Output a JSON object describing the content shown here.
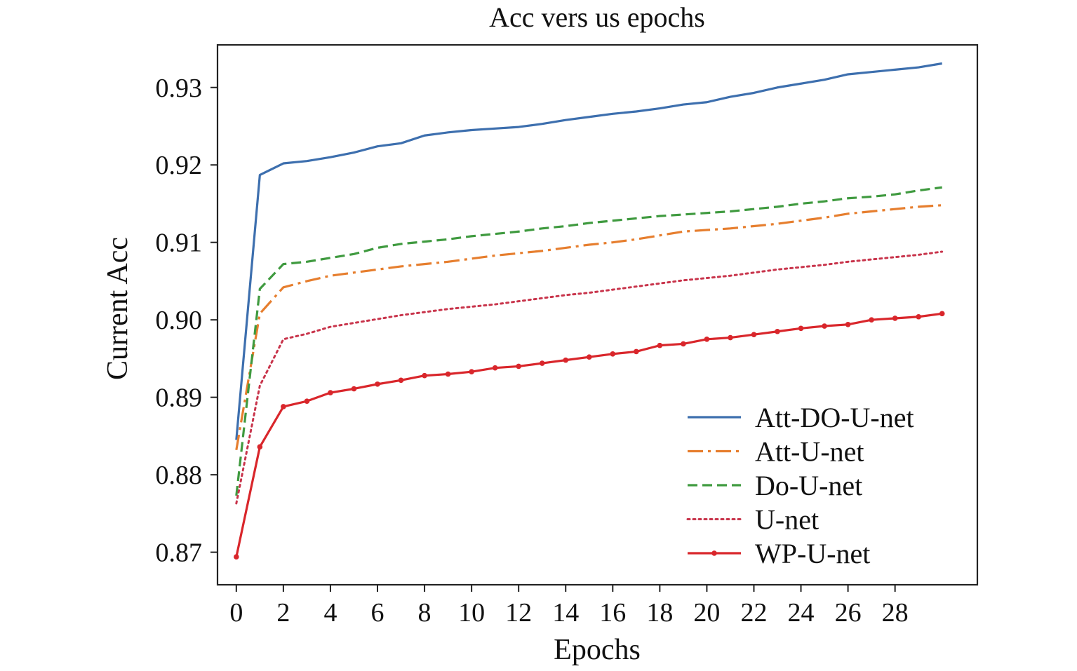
{
  "chart_data": {
    "type": "line",
    "title": "Acc vers us epochs",
    "xlabel": "Epochs",
    "ylabel": "Current Acc",
    "xlim": [
      -0.8,
      31.5
    ],
    "ylim": [
      0.8658,
      0.9355
    ],
    "x_ticks": [
      0,
      2,
      4,
      6,
      8,
      10,
      12,
      14,
      16,
      18,
      20,
      22,
      24,
      26,
      28
    ],
    "x_tick_labels": [
      "0",
      "2",
      "4",
      "6",
      "8",
      "10",
      "12",
      "14",
      "16",
      "18",
      "20",
      "22",
      "24",
      "26",
      "28"
    ],
    "y_ticks": [
      0.87,
      0.88,
      0.89,
      0.9,
      0.91,
      0.92,
      0.93
    ],
    "y_tick_labels": [
      "0.87",
      "0.88",
      "0.89",
      "0.90",
      "0.91",
      "0.92",
      "0.93"
    ],
    "grid": false,
    "legend_position": "bottom-right",
    "x": [
      0,
      1,
      2,
      3,
      4,
      5,
      6,
      7,
      8,
      9,
      10,
      11,
      12,
      13,
      14,
      15,
      16,
      17,
      18,
      19,
      20,
      21,
      22,
      23,
      24,
      25,
      26,
      27,
      28,
      29,
      30
    ],
    "series": [
      {
        "name": "Att-DO-U-net",
        "color": "#3d6fae",
        "style": "solid",
        "values": [
          0.8845,
          0.9187,
          0.9202,
          0.9205,
          0.921,
          0.9216,
          0.9224,
          0.9228,
          0.9238,
          0.9242,
          0.9245,
          0.9247,
          0.9249,
          0.9253,
          0.9258,
          0.9262,
          0.9266,
          0.9269,
          0.9273,
          0.9278,
          0.9281,
          0.9288,
          0.9293,
          0.93,
          0.9305,
          0.931,
          0.9317,
          0.932,
          0.9323,
          0.9326,
          0.9331
        ]
      },
      {
        "name": "Att-U-net",
        "color": "#e67e2e",
        "style": "dashdot",
        "values": [
          0.8832,
          0.9008,
          0.9042,
          0.905,
          0.9057,
          0.9061,
          0.9065,
          0.9069,
          0.9072,
          0.9075,
          0.9079,
          0.9083,
          0.9086,
          0.9089,
          0.9093,
          0.9097,
          0.91,
          0.9104,
          0.9109,
          0.9114,
          0.9116,
          0.9118,
          0.9121,
          0.9124,
          0.9128,
          0.9132,
          0.9137,
          0.914,
          0.9143,
          0.9146,
          0.9148
        ]
      },
      {
        "name": "Do-U-net",
        "color": "#3f9a3f",
        "style": "dashed",
        "values": [
          0.8773,
          0.904,
          0.9072,
          0.9075,
          0.908,
          0.9085,
          0.9093,
          0.9098,
          0.9101,
          0.9104,
          0.9108,
          0.9111,
          0.9114,
          0.9118,
          0.9121,
          0.9125,
          0.9128,
          0.9131,
          0.9134,
          0.9136,
          0.9138,
          0.914,
          0.9143,
          0.9146,
          0.915,
          0.9153,
          0.9157,
          0.9159,
          0.9162,
          0.9167,
          0.9171
        ]
      },
      {
        "name": "U-net",
        "color": "#c8344b",
        "style": "dotted",
        "values": [
          0.8763,
          0.8915,
          0.8975,
          0.8982,
          0.8991,
          0.8996,
          0.9001,
          0.9006,
          0.901,
          0.9014,
          0.9017,
          0.902,
          0.9024,
          0.9028,
          0.9032,
          0.9035,
          0.9039,
          0.9043,
          0.9047,
          0.9051,
          0.9054,
          0.9057,
          0.9061,
          0.9065,
          0.9068,
          0.9071,
          0.9075,
          0.9078,
          0.9081,
          0.9084,
          0.9088
        ]
      },
      {
        "name": "WP-U-net",
        "color": "#d9262b",
        "style": "solid-markers",
        "values": [
          0.8694,
          0.8836,
          0.8888,
          0.8895,
          0.8906,
          0.8911,
          0.8917,
          0.8922,
          0.8928,
          0.893,
          0.8933,
          0.8938,
          0.894,
          0.8944,
          0.8948,
          0.8952,
          0.8956,
          0.8959,
          0.8967,
          0.8969,
          0.8975,
          0.8977,
          0.8981,
          0.8985,
          0.8989,
          0.8992,
          0.8994,
          0.9,
          0.9002,
          0.9004,
          0.9008
        ]
      }
    ]
  }
}
